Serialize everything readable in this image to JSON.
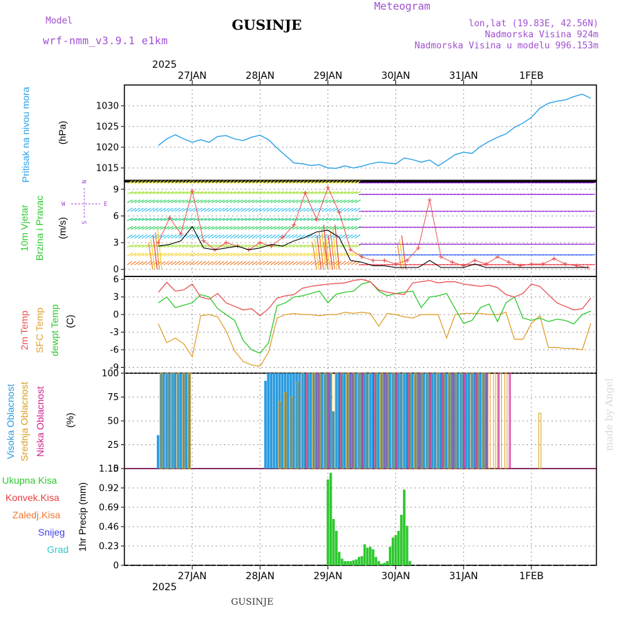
{
  "header": {
    "model_label": "Model",
    "model_name": "wrf-nmm_v3.9.1  e1km",
    "station": "GUSINJE",
    "product": "Meteogram",
    "lonlat": "lon,lat (19.83E, 42.56N)",
    "elevation": "Nadmorska Visina 924m",
    "model_elevation": "Nadmorska Visina u modelu 996.153m",
    "credit": "made by Angel",
    "footer_station": "GUSINJE"
  },
  "colors": {
    "pressure": "#2aa0e6",
    "temp2m": "#e85050",
    "sfc": "#e0a030",
    "dewpt": "#2ec82e",
    "high_cloud": "#2a9be0",
    "mid_cloud": "#d8a020",
    "low_cloud": "#d0208a",
    "precip": "#2ec82e",
    "header": "#a050d0",
    "meteogram": "#e8c070",
    "wind_purple": "#9020d0",
    "credit": "#d8d8d8"
  },
  "chart_data": [
    {
      "type": "line",
      "panel": "pressure",
      "ylabel": "Pritisak na nivou mora",
      "unit": "(hPa)",
      "ylim": [
        1012,
        1035
      ],
      "yticks": [
        1015,
        1020,
        1025,
        1030
      ],
      "grid": true,
      "x_hours": [
        0,
        3,
        6,
        9,
        12,
        15,
        18,
        21,
        24,
        27,
        30,
        33,
        36,
        39,
        42,
        45,
        48,
        51,
        54,
        57,
        60,
        63,
        66,
        69,
        72,
        75,
        78,
        81,
        84,
        87,
        90,
        93,
        96,
        99,
        102,
        105,
        108,
        111,
        114,
        117,
        120,
        123,
        126,
        129,
        132,
        135,
        138,
        141,
        144,
        147,
        150,
        153
      ],
      "series": [
        {
          "values": [
            1020.4,
            1022.0,
            1023.0,
            1022.0,
            1021.2,
            1021.8,
            1021.2,
            1022.6,
            1022.8,
            1022.0,
            1021.6,
            1022.4,
            1022.9,
            1021.8,
            1019.8,
            1018.0,
            1016.2,
            1016.0,
            1015.6,
            1015.8,
            1015.0,
            1014.9,
            1015.5,
            1015.0,
            1015.4,
            1016.0,
            1016.4,
            1016.2,
            1016.0,
            1017.4,
            1017.0,
            1016.4,
            1016.9,
            1015.5,
            1016.8,
            1018.2,
            1018.8,
            1018.5,
            1020.2,
            1021.4,
            1022.4,
            1023.2,
            1024.8,
            1025.8,
            1027.2,
            1029.4,
            1030.6,
            1031.1,
            1031.4,
            1032.2,
            1032.8,
            1031.8
          ]
        }
      ]
    },
    {
      "type": "line",
      "panel": "wind",
      "ylabel_lines": [
        "10m Vjetar",
        "Brzina i Pravac"
      ],
      "unit": "(m/s)",
      "ylim": [
        -0.8,
        10
      ],
      "yticks": [
        0,
        3,
        6,
        9
      ],
      "compass": {
        "n": "N",
        "s": "S",
        "w": "W",
        "e": "E"
      },
      "grid": true,
      "x_hours": [
        0,
        4,
        8,
        12,
        16,
        20,
        24,
        28,
        32,
        36,
        40,
        44,
        48,
        52,
        56,
        60,
        64,
        68,
        72,
        76,
        80,
        84,
        88,
        92,
        96,
        100,
        104,
        108,
        112,
        116,
        120,
        124,
        128,
        132,
        136,
        140,
        144,
        148,
        152
      ],
      "series": [
        {
          "name": "gust",
          "values": [
            3.0,
            5.8,
            4.0,
            8.8,
            3.2,
            2.2,
            3.0,
            2.6,
            2.2,
            3.0,
            2.6,
            3.6,
            5.0,
            8.6,
            5.6,
            9.2,
            6.4,
            2.2,
            1.4,
            1.0,
            1.0,
            0.6,
            1.0,
            2.4,
            7.8,
            1.4,
            0.8,
            0.4,
            1.0,
            0.6,
            1.4,
            0.8,
            0.4,
            0.6,
            0.6,
            1.2,
            0.6,
            0.4,
            0.2
          ]
        },
        {
          "name": "speed",
          "values": [
            2.6,
            2.8,
            3.2,
            4.8,
            2.4,
            2.2,
            2.4,
            2.6,
            2.2,
            2.4,
            2.8,
            2.6,
            3.2,
            3.6,
            4.2,
            4.4,
            3.6,
            1.0,
            0.8,
            0.4,
            0.4,
            0.2,
            0.2,
            0.2,
            1.0,
            0.2,
            0.2,
            0.2,
            0.6,
            0.2,
            0.2,
            0.2,
            0.2,
            0.2,
            0.2,
            0.2,
            0.2,
            0.2,
            0.2
          ]
        }
      ],
      "barb_levels_early": [
        0.5,
        1.5,
        2.5,
        3.5,
        4.5,
        5.5,
        6.5,
        7.5,
        8.5,
        9.6
      ],
      "barb_levels_late": [
        0.5,
        1.6,
        2.8,
        4.7,
        6.5,
        8.4,
        9.7
      ]
    },
    {
      "type": "line",
      "panel": "temperature",
      "ylabel_lines": [
        "2m Temp",
        "SFC Temp",
        "dewpt Temp"
      ],
      "unit": "(C)",
      "ylim": [
        -10,
        6.5
      ],
      "yticks": [
        6,
        3,
        0,
        -3,
        -6,
        -9
      ],
      "grid": true,
      "x_hours": [
        0,
        3,
        6,
        9,
        12,
        15,
        18,
        21,
        24,
        27,
        30,
        33,
        36,
        39,
        42,
        45,
        48,
        51,
        54,
        57,
        60,
        63,
        66,
        69,
        72,
        75,
        78,
        81,
        84,
        87,
        90,
        93,
        96,
        99,
        102,
        105,
        108,
        111,
        114,
        117,
        120,
        123,
        126,
        129,
        132,
        135,
        138,
        141,
        144,
        147,
        150,
        153
      ],
      "series": [
        {
          "name": "2m Temp",
          "values": [
            3.8,
            5.5,
            4.0,
            4.2,
            5.2,
            3.0,
            2.6,
            3.6,
            2.0,
            1.4,
            0.8,
            1.0,
            -0.2,
            1.0,
            2.8,
            3.2,
            3.4,
            4.5,
            4.8,
            5.0,
            5.2,
            5.3,
            5.4,
            5.8,
            6.0,
            5.6,
            4.2,
            3.8,
            3.6,
            3.4,
            5.4,
            5.6,
            5.8,
            5.4,
            5.6,
            5.6,
            5.2,
            5.0,
            4.8,
            5.0,
            4.6,
            3.4,
            3.0,
            3.6,
            5.2,
            4.8,
            3.4,
            2.0,
            1.4,
            0.8,
            1.0,
            2.8
          ]
        },
        {
          "name": "dewpt Temp",
          "values": [
            2.0,
            3.0,
            1.2,
            1.6,
            2.0,
            3.4,
            3.0,
            1.0,
            0.0,
            -1.0,
            -4.4,
            -6.0,
            -6.6,
            -4.8,
            1.5,
            2.0,
            3.0,
            3.2,
            3.6,
            4.0,
            2.0,
            3.5,
            3.8,
            4.0,
            5.2,
            5.6,
            4.0,
            3.2,
            3.6,
            3.8,
            4.0,
            1.2,
            3.0,
            3.2,
            3.6,
            1.0,
            -1.5,
            -1.0,
            1.2,
            1.8,
            -1.2,
            2.0,
            3.0,
            -0.6,
            -1.0,
            -0.6,
            -1.2,
            -0.8,
            -1.0,
            -1.6,
            0.0,
            0.6
          ]
        },
        {
          "name": "SFC Temp",
          "values": [
            -1.6,
            -4.8,
            -4.0,
            -5.0,
            -7.2,
            -0.2,
            0.0,
            -0.4,
            -2.8,
            -6.2,
            -8.0,
            -8.6,
            -8.8,
            -6.4,
            -0.6,
            0.0,
            0.2,
            0.0,
            0.0,
            -0.2,
            0.0,
            0.0,
            0.4,
            0.2,
            0.4,
            0.2,
            -2.0,
            0.2,
            0.0,
            -0.4,
            -0.6,
            0.0,
            0.0,
            0.0,
            -4.0,
            0.0,
            0.2,
            0.2,
            0.2,
            0.0,
            0.0,
            0.4,
            -4.2,
            -4.2,
            -1.5,
            -0.2,
            -5.6,
            -5.6,
            -5.8,
            -5.8,
            -6.0,
            -1.5
          ]
        }
      ]
    },
    {
      "type": "bar",
      "panel": "clouds",
      "ylabel_lines": [
        "Visoka Oblacnost",
        "Srednja Oblacnost",
        "Niska Oblacnost"
      ],
      "unit": "(%)",
      "ylim": [
        0,
        100
      ],
      "yticks": [
        0,
        25,
        50,
        75,
        100
      ],
      "grid": true,
      "high_hours": [
        0,
        1,
        2,
        3,
        4,
        5,
        6,
        7,
        8,
        9,
        10,
        11,
        38,
        39,
        40,
        41,
        42,
        43,
        44,
        45,
        46,
        47,
        48,
        49,
        50,
        51,
        52,
        53,
        54,
        55,
        56,
        57,
        58,
        59,
        60,
        61,
        62,
        63,
        64,
        65,
        66,
        67,
        68,
        69,
        70,
        71,
        72,
        73,
        74,
        75,
        76,
        77,
        78,
        79,
        80,
        81,
        82,
        83,
        84,
        85,
        86,
        87,
        88,
        89,
        90,
        91,
        92,
        93,
        94,
        95,
        96,
        97,
        98,
        99,
        100,
        101,
        102,
        103,
        104,
        105,
        106,
        107,
        108,
        109,
        110,
        111,
        112,
        113,
        114,
        115,
        116
      ],
      "high_values": [
        35,
        100,
        100,
        100,
        100,
        100,
        100,
        100,
        100,
        100,
        100,
        100,
        92,
        100,
        100,
        100,
        100,
        100,
        100,
        100,
        100,
        100,
        100,
        100,
        100,
        100,
        100,
        100,
        100,
        100,
        100,
        100,
        100,
        100,
        100,
        100,
        60,
        100,
        100,
        100,
        100,
        100,
        100,
        100,
        100,
        100,
        100,
        100,
        100,
        100,
        100,
        100,
        100,
        100,
        100,
        100,
        100,
        100,
        100,
        100,
        100,
        100,
        100,
        100,
        100,
        100,
        100,
        100,
        100,
        100,
        100,
        100,
        100,
        100,
        100,
        100,
        100,
        100,
        100,
        100,
        100,
        100,
        100,
        100,
        100,
        100,
        100,
        100,
        100,
        100,
        100
      ],
      "mid_hours": [
        1,
        3,
        5,
        7,
        9,
        11,
        43,
        45,
        47,
        49,
        51,
        53,
        55,
        57,
        59,
        61,
        63,
        65,
        67,
        69,
        71,
        73,
        75,
        77,
        79,
        81,
        83,
        85,
        87,
        89,
        91,
        93,
        95,
        97,
        99,
        101,
        103,
        105,
        107,
        109,
        111,
        113,
        115,
        117,
        119,
        121,
        123,
        135
      ],
      "mid_values": [
        100,
        100,
        100,
        100,
        100,
        100,
        70,
        80,
        75,
        90,
        100,
        100,
        100,
        100,
        100,
        100,
        100,
        100,
        100,
        100,
        100,
        100,
        100,
        100,
        100,
        100,
        100,
        100,
        100,
        100,
        100,
        100,
        100,
        100,
        100,
        100,
        100,
        100,
        100,
        100,
        100,
        100,
        100,
        100,
        100,
        100,
        100,
        58
      ],
      "low_hours": [
        52,
        56,
        60,
        64,
        68,
        72,
        76,
        80,
        84,
        88,
        92,
        96,
        100,
        104,
        108,
        112,
        116,
        120,
        124
      ],
      "low_values": [
        100,
        100,
        100,
        100,
        100,
        100,
        100,
        100,
        100,
        100,
        100,
        100,
        100,
        100,
        100,
        100,
        100,
        100,
        100
      ]
    },
    {
      "type": "bar",
      "panel": "precipitation",
      "unit_label": "1hr Precip (mm)",
      "legend": [
        "Ukupna Kisa",
        "Konvek.Kisa",
        "Zaledj.Kisa",
        "Snijeg",
        "Grad"
      ],
      "legend_colors": [
        "#2ec82e",
        "#e84040",
        "#f07830",
        "#4040e8",
        "#30c8c8"
      ],
      "ylim": [
        0,
        1.15
      ],
      "yticks": [
        "0",
        "0.23",
        "0.46",
        "0.69",
        "0.92",
        "1.15"
      ],
      "grid": true,
      "x_hours": [
        60,
        61,
        62,
        63,
        64,
        65,
        66,
        67,
        68,
        69,
        70,
        71,
        72,
        73,
        74,
        75,
        76,
        77,
        78,
        79,
        80,
        81,
        82,
        83,
        84,
        85,
        86,
        87,
        88,
        89,
        90,
        91,
        92
      ],
      "values": [
        1.02,
        1.1,
        0.55,
        0.41,
        0.16,
        0.08,
        0.05,
        0.05,
        0.05,
        0.06,
        0.07,
        0.1,
        0.11,
        0.25,
        0.21,
        0.22,
        0.19,
        0.1,
        0.05,
        0.02,
        0.03,
        0.05,
        0.22,
        0.33,
        0.36,
        0.41,
        0.6,
        0.9,
        0.47,
        0.05,
        0,
        0,
        0
      ]
    }
  ],
  "x_axis": {
    "labels": [
      "27JAN",
      "28JAN",
      "29JAN",
      "30JAN",
      "31JAN",
      "1FEB"
    ],
    "label_hours": [
      12,
      36,
      60,
      84,
      108,
      132
    ],
    "year": "2025"
  }
}
